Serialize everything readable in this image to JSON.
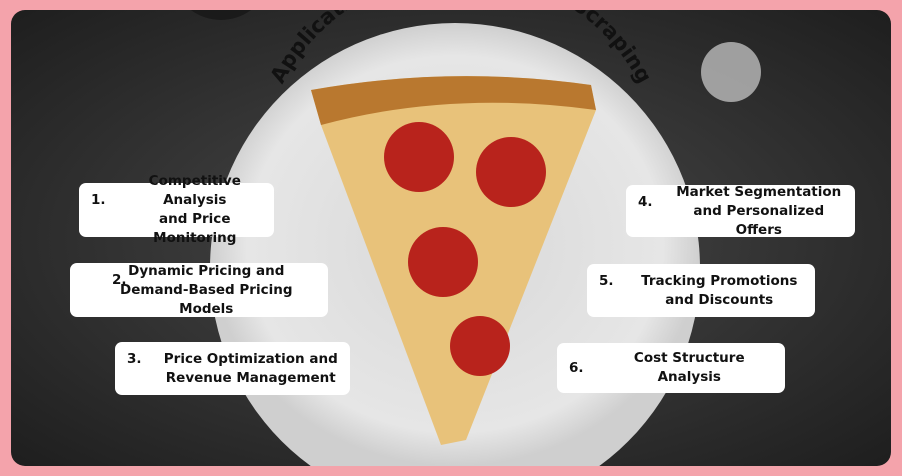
{
  "title": "Applications of Pricing Data Scraping",
  "items": [
    {
      "num": "1.",
      "line1": "Competitive Analysis",
      "line2": "and Price Monitoring"
    },
    {
      "num": "2.",
      "line1": "Dynamic Pricing and",
      "line2": "Demand-Based Pricing Models"
    },
    {
      "num": "3.",
      "line1": "Price Optimization and",
      "line2": "Revenue Management"
    },
    {
      "num": "4.",
      "line1": "Market Segmentation",
      "line2": "and Personalized Offers"
    },
    {
      "num": "5.",
      "line1": "Tracking Promotions",
      "line2": "and Discounts"
    },
    {
      "num": "6.",
      "line1": "Cost Structure Analysis",
      "line2": ""
    }
  ],
  "colors": {
    "border": "#f4a3ab",
    "background": "#2b2b2b",
    "card": "#ffffff",
    "pepperoni": "#b8231c"
  }
}
